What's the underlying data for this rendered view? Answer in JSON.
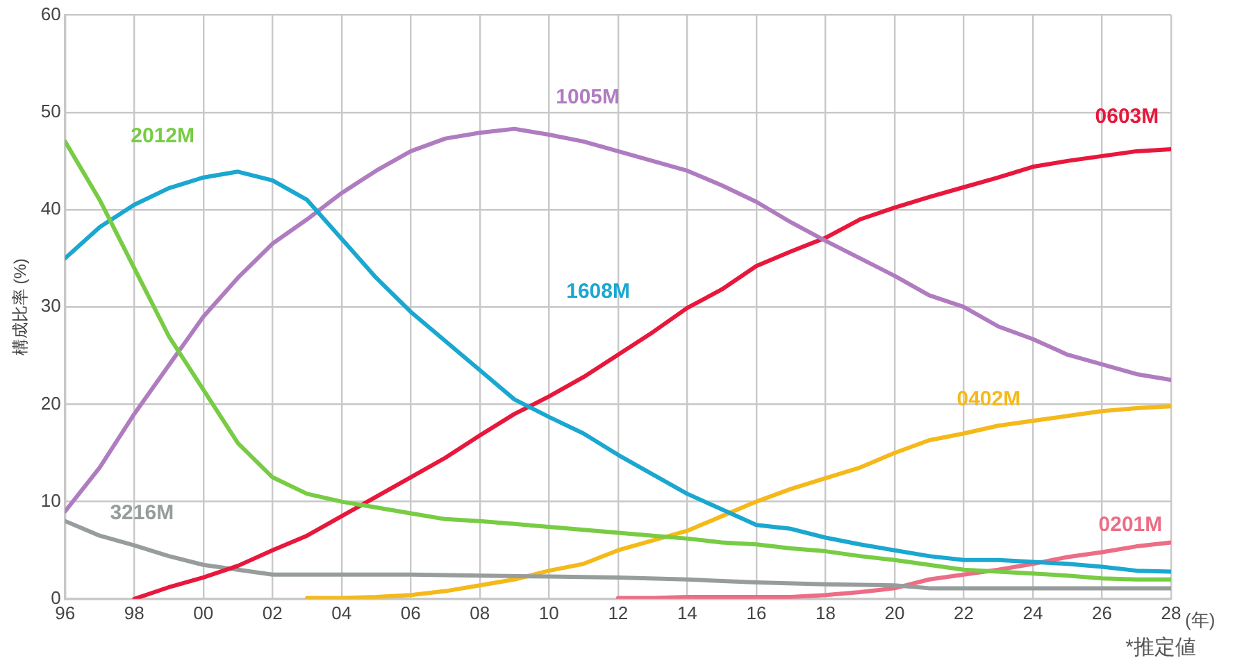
{
  "chart_data": {
    "type": "line",
    "ylabel": "構成比率 (%)",
    "xlabel": "(年)",
    "annotations": [
      "*推定値"
    ],
    "xlim": [
      1996,
      2028
    ],
    "ylim": [
      0,
      60
    ],
    "yticks": [
      0,
      10,
      20,
      30,
      40,
      50,
      60
    ],
    "xticks": [
      {
        "value": 1996,
        "label": "96"
      },
      {
        "value": 1998,
        "label": "98"
      },
      {
        "value": 2000,
        "label": "00"
      },
      {
        "value": 2002,
        "label": "02"
      },
      {
        "value": 2004,
        "label": "04"
      },
      {
        "value": 2006,
        "label": "06"
      },
      {
        "value": 2008,
        "label": "08"
      },
      {
        "value": 2010,
        "label": "10"
      },
      {
        "value": 2012,
        "label": "12"
      },
      {
        "value": 2014,
        "label": "14"
      },
      {
        "value": 2016,
        "label": "16"
      },
      {
        "value": 2018,
        "label": "18"
      },
      {
        "value": 2020,
        "label": "20"
      },
      {
        "value": 2022,
        "label": "22"
      },
      {
        "value": 2024,
        "label": "24"
      },
      {
        "value": 2026,
        "label": "26"
      },
      {
        "value": 2028,
        "label": "28"
      }
    ],
    "grid": true,
    "legend": false,
    "marker": "none",
    "line_style": "solid",
    "series": [
      {
        "name": "2012M",
        "color": "#77cc44",
        "x": [
          1996,
          1997,
          1998,
          1999,
          2000,
          2001,
          2002,
          2003,
          2004,
          2005,
          2006,
          2007,
          2008,
          2009,
          2010,
          2011,
          2012,
          2013,
          2014,
          2015,
          2016,
          2017,
          2018,
          2019,
          2020,
          2021,
          2022,
          2023,
          2024,
          2025,
          2026,
          2027,
          2028
        ],
        "values": [
          47,
          41,
          34,
          27,
          21.5,
          16,
          12.5,
          10.8,
          10,
          9.4,
          8.8,
          8.2,
          8,
          7.7,
          7.4,
          7.1,
          6.8,
          6.5,
          6.2,
          5.8,
          5.6,
          5.2,
          4.9,
          4.4,
          4,
          3.5,
          3,
          2.8,
          2.6,
          2.4,
          2.1,
          2,
          2
        ]
      },
      {
        "name": "1608M",
        "color": "#1aa7d0",
        "x": [
          1996,
          1997,
          1998,
          1999,
          2000,
          2001,
          2002,
          2003,
          2004,
          2005,
          2006,
          2007,
          2008,
          2009,
          2010,
          2011,
          2012,
          2013,
          2014,
          2015,
          2016,
          2017,
          2018,
          2019,
          2020,
          2021,
          2022,
          2023,
          2024,
          2025,
          2026,
          2027,
          2028
        ],
        "values": [
          35,
          38.2,
          40.5,
          42.2,
          43.3,
          43.9,
          43,
          41,
          37,
          33,
          29.5,
          26.5,
          23.5,
          20.5,
          18.7,
          17,
          14.8,
          12.8,
          10.8,
          9.2,
          7.6,
          7.2,
          6.3,
          5.6,
          5,
          4.4,
          4,
          4,
          3.8,
          3.6,
          3.3,
          2.9,
          2.8
        ]
      },
      {
        "name": "1005M",
        "color": "#b07cc0",
        "x": [
          1996,
          1997,
          1998,
          1999,
          2000,
          2001,
          2002,
          2003,
          2004,
          2005,
          2006,
          2007,
          2008,
          2009,
          2010,
          2011,
          2012,
          2013,
          2014,
          2015,
          2016,
          2017,
          2018,
          2019,
          2020,
          2021,
          2022,
          2023,
          2024,
          2025,
          2026,
          2027,
          2028
        ],
        "values": [
          9,
          13.5,
          19,
          24,
          29,
          33,
          36.5,
          39,
          41.7,
          44,
          46,
          47.3,
          47.9,
          48.3,
          47.7,
          47,
          46,
          45,
          44,
          42.5,
          40.8,
          38.7,
          36.8,
          35,
          33.2,
          31.2,
          30,
          28,
          26.7,
          25.1,
          24.1,
          23.1,
          22.5
        ]
      },
      {
        "name": "0603M",
        "color": "#e8173c",
        "x": [
          1998,
          1999,
          2000,
          2001,
          2002,
          2003,
          2004,
          2005,
          2006,
          2007,
          2008,
          2009,
          2010,
          2011,
          2012,
          2013,
          2014,
          2015,
          2016,
          2017,
          2018,
          2019,
          2020,
          2021,
          2022,
          2023,
          2024,
          2025,
          2026,
          2027,
          2028
        ],
        "values": [
          0,
          1.2,
          2.2,
          3.4,
          5,
          6.5,
          8.5,
          10.5,
          12.5,
          14.5,
          16.8,
          19,
          20.8,
          22.8,
          25.1,
          27.4,
          29.9,
          31.8,
          34.2,
          35.7,
          37.1,
          39,
          40.2,
          41.3,
          42.3,
          43.3,
          44.4,
          45,
          45.5,
          46,
          46.2
        ]
      },
      {
        "name": "3216M",
        "color": "#979d9d",
        "x": [
          1996,
          1997,
          1998,
          1999,
          2000,
          2001,
          2002,
          2004,
          2006,
          2008,
          2010,
          2012,
          2014,
          2016,
          2018,
          2020,
          2021,
          2024,
          2028
        ],
        "values": [
          8,
          6.5,
          5.5,
          4.4,
          3.5,
          3,
          2.5,
          2.5,
          2.5,
          2.4,
          2.3,
          2.2,
          2,
          1.7,
          1.5,
          1.4,
          1.1,
          1.1,
          1.1
        ]
      },
      {
        "name": "0402M",
        "color": "#f4b91a",
        "x": [
          2003,
          2004,
          2005,
          2006,
          2007,
          2008,
          2009,
          2010,
          2011,
          2012,
          2013,
          2014,
          2015,
          2016,
          2017,
          2018,
          2019,
          2020,
          2021,
          2022,
          2023,
          2024,
          2025,
          2026,
          2027,
          2028
        ],
        "values": [
          0.1,
          0.1,
          0.2,
          0.4,
          0.8,
          1.4,
          2,
          2.9,
          3.6,
          5,
          6,
          7,
          8.5,
          10,
          11.3,
          12.4,
          13.5,
          15,
          16.3,
          17,
          17.8,
          18.3,
          18.8,
          19.3,
          19.6,
          19.8
        ]
      },
      {
        "name": "0201M",
        "color": "#ec6d85",
        "x": [
          2012,
          2013,
          2014,
          2015,
          2016,
          2017,
          2018,
          2019,
          2020,
          2021,
          2022,
          2023,
          2024,
          2025,
          2026,
          2027,
          2028
        ],
        "values": [
          0.1,
          0.1,
          0.2,
          0.2,
          0.2,
          0.2,
          0.4,
          0.7,
          1.1,
          2,
          2.5,
          3,
          3.6,
          4.3,
          4.8,
          5.4,
          5.8
        ]
      }
    ]
  }
}
